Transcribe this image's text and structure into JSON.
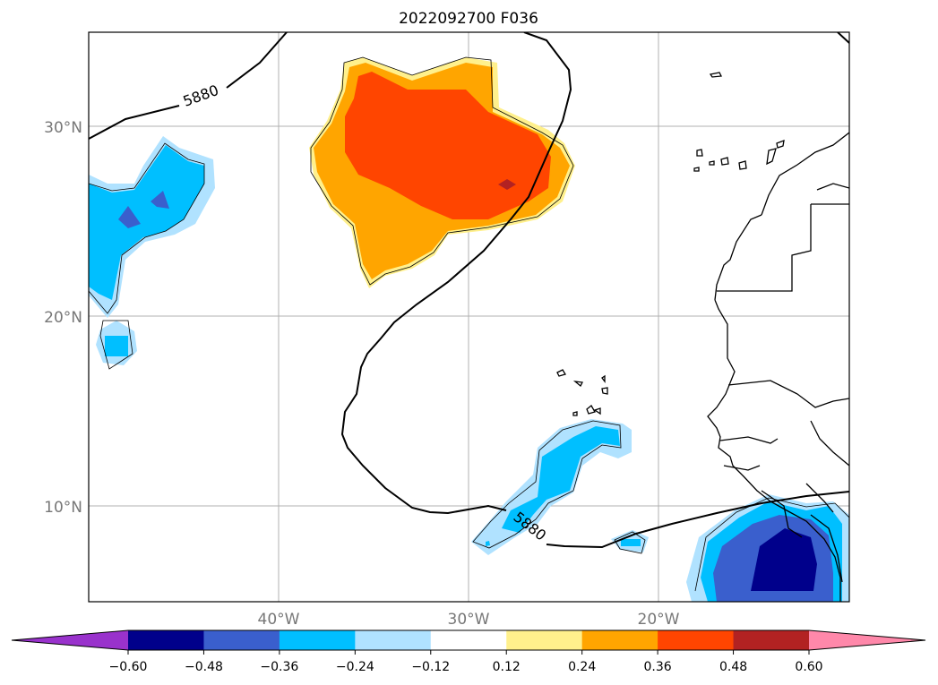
{
  "title": "2022092700 F036",
  "map": {
    "lon_range": [
      -50,
      -10
    ],
    "lat_range": [
      5,
      35
    ],
    "lon_ticks": [
      -40,
      -30,
      -20
    ],
    "lat_ticks": [
      10,
      20,
      30
    ],
    "lon_tick_labels": [
      "40°W",
      "30°W",
      "20°W"
    ],
    "lat_tick_labels": [
      "10°N",
      "20°N",
      "30°N"
    ],
    "grid": true,
    "contour_label": "5880",
    "contour_label_2": "5880"
  },
  "colorbar": {
    "levels": [
      -0.6,
      -0.48,
      -0.36,
      -0.24,
      -0.12,
      0.12,
      0.24,
      0.36,
      0.48,
      0.6
    ],
    "tick_labels": [
      "−0.60",
      "−0.48",
      "−0.36",
      "−0.24",
      "−0.12",
      "0.12",
      "0.24",
      "0.36",
      "0.48",
      "0.60"
    ],
    "colors": [
      "#9932cc",
      "#00008b",
      "#3a5fcd",
      "#00bfff",
      "#b0e2ff",
      "#ffffff",
      "#fff08c",
      "#ffa500",
      "#ff4500",
      "#b22222",
      "#ff88aa"
    ],
    "extend": "both"
  }
}
